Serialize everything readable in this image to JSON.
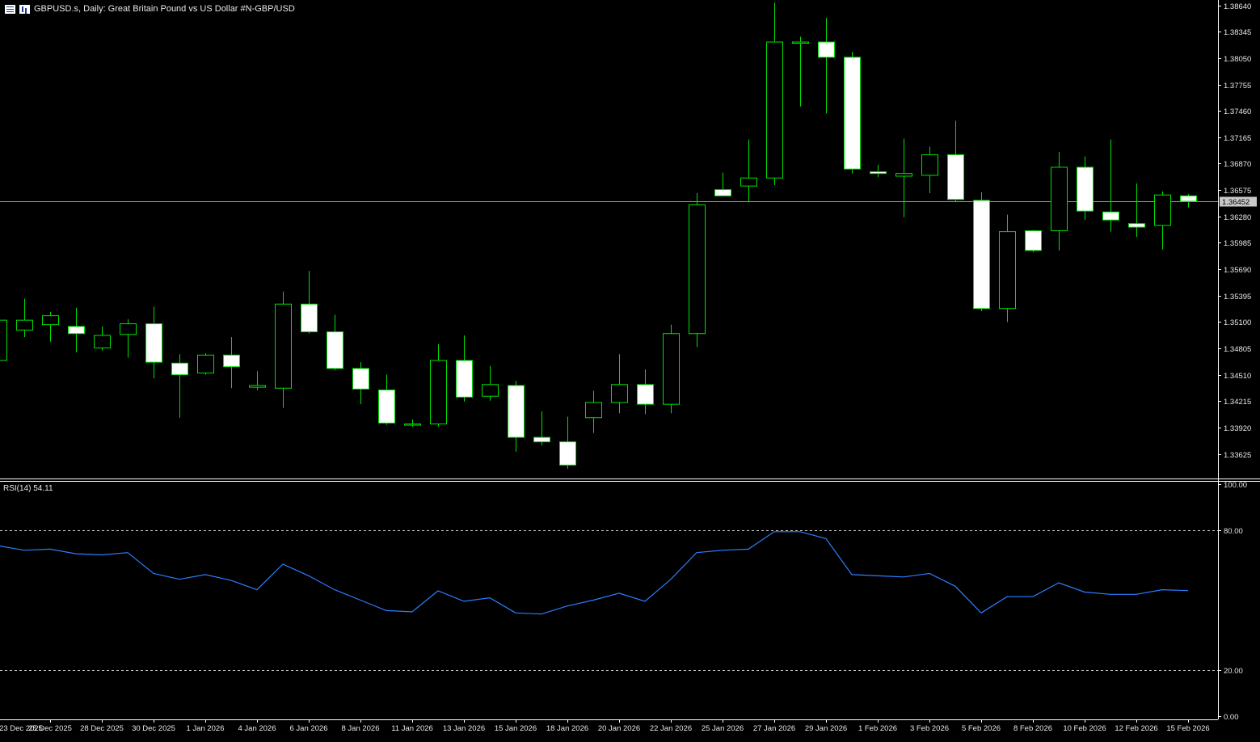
{
  "header": {
    "title": "GBPUSD.s, Daily:  Great Britain Pound vs US Dollar #N-GBP/USD",
    "menu_icon": "menu-icon",
    "chart_icon": "chart-icon"
  },
  "rsi": {
    "label": "RSI(14) 54.11"
  },
  "colors": {
    "background": "#000000",
    "candle": "#00e000",
    "candle_body": "#ffffff",
    "rsi_line": "#2a7fff",
    "axis": "#ffffff",
    "price_line": "#8aa0a0"
  },
  "chart_data": [
    {
      "type": "candlestick",
      "title": "GBPUSD.s, Daily:  Great Britain Pound vs US Dollar #N-GBP/USD",
      "price_label": "1.36452",
      "current_price": 1.36452,
      "ylim": [
        1.3335,
        1.387
      ],
      "yticks": [
        "1.38640",
        "1.38345",
        "1.38050",
        "1.37755",
        "1.37460",
        "1.37165",
        "1.36870",
        "1.36575",
        "1.36280",
        "1.35985",
        "1.35690",
        "1.35395",
        "1.35100",
        "1.34805",
        "1.34510",
        "1.34215",
        "1.33920",
        "1.33625"
      ],
      "x_labels": [
        "23 Dec 2025",
        "25 Dec 2025",
        "28 Dec 2025",
        "30 Dec 2025",
        "1 Jan 2026",
        "4 Jan 2026",
        "6 Jan 2026",
        "8 Jan 2026",
        "11 Jan 2026",
        "13 Jan 2026",
        "15 Jan 2026",
        "18 Jan 2026",
        "20 Jan 2026",
        "22 Jan 2026",
        "25 Jan 2026",
        "27 Jan 2026",
        "29 Jan 2026",
        "1 Feb 2026",
        "3 Feb 2026",
        "5 Feb 2026",
        "8 Feb 2026",
        "10 Feb 2026",
        "12 Feb 2026",
        "15 Feb 2026"
      ],
      "candles": [
        {
          "o": 1.3467,
          "h": 1.3515,
          "l": 1.3467,
          "c": 1.3512
        },
        {
          "o": 1.3501,
          "h": 1.3536,
          "l": 1.3493,
          "c": 1.3512
        },
        {
          "o": 1.3507,
          "h": 1.3521,
          "l": 1.3488,
          "c": 1.3517
        },
        {
          "o": 1.3505,
          "h": 1.3526,
          "l": 1.3476,
          "c": 1.3497
        },
        {
          "o": 1.3481,
          "h": 1.3505,
          "l": 1.3478,
          "c": 1.3495
        },
        {
          "o": 1.3496,
          "h": 1.3513,
          "l": 1.347,
          "c": 1.3508
        },
        {
          "o": 1.3508,
          "h": 1.3527,
          "l": 1.3447,
          "c": 1.3465
        },
        {
          "o": 1.3464,
          "h": 1.3474,
          "l": 1.3403,
          "c": 1.3451
        },
        {
          "o": 1.3453,
          "h": 1.3475,
          "l": 1.3451,
          "c": 1.3473
        },
        {
          "o": 1.3473,
          "h": 1.3493,
          "l": 1.3436,
          "c": 1.346
        },
        {
          "o": 1.3437,
          "h": 1.3455,
          "l": 1.3434,
          "c": 1.3439
        },
        {
          "o": 1.3436,
          "h": 1.3544,
          "l": 1.3414,
          "c": 1.353
        },
        {
          "o": 1.353,
          "h": 1.3567,
          "l": 1.3497,
          "c": 1.3499
        },
        {
          "o": 1.3499,
          "h": 1.3518,
          "l": 1.3456,
          "c": 1.3458
        },
        {
          "o": 1.3458,
          "h": 1.3465,
          "l": 1.3418,
          "c": 1.3435
        },
        {
          "o": 1.3434,
          "h": 1.3451,
          "l": 1.3395,
          "c": 1.3397
        },
        {
          "o": 1.3396,
          "h": 1.3401,
          "l": 1.3393,
          "c": 1.3396
        },
        {
          "o": 1.3396,
          "h": 1.3485,
          "l": 1.3393,
          "c": 1.3467
        },
        {
          "o": 1.3467,
          "h": 1.3495,
          "l": 1.3421,
          "c": 1.3426
        },
        {
          "o": 1.3427,
          "h": 1.3461,
          "l": 1.3422,
          "c": 1.344
        },
        {
          "o": 1.3439,
          "h": 1.3444,
          "l": 1.3365,
          "c": 1.3381
        },
        {
          "o": 1.3381,
          "h": 1.341,
          "l": 1.3372,
          "c": 1.3376
        },
        {
          "o": 1.3376,
          "h": 1.3404,
          "l": 1.3346,
          "c": 1.335
        },
        {
          "o": 1.3403,
          "h": 1.3433,
          "l": 1.3386,
          "c": 1.342
        },
        {
          "o": 1.342,
          "h": 1.3474,
          "l": 1.3408,
          "c": 1.344
        },
        {
          "o": 1.344,
          "h": 1.3457,
          "l": 1.3407,
          "c": 1.3418
        },
        {
          "o": 1.3418,
          "h": 1.3507,
          "l": 1.3408,
          "c": 1.3497
        },
        {
          "o": 1.3497,
          "h": 1.3654,
          "l": 1.3482,
          "c": 1.3641
        },
        {
          "o": 1.3658,
          "h": 1.3677,
          "l": 1.3653,
          "c": 1.3651
        },
        {
          "o": 1.3662,
          "h": 1.3714,
          "l": 1.3644,
          "c": 1.3671
        },
        {
          "o": 1.3671,
          "h": 1.3867,
          "l": 1.3663,
          "c": 1.3823
        },
        {
          "o": 1.3823,
          "h": 1.3829,
          "l": 1.3751,
          "c": 1.3823
        },
        {
          "o": 1.3823,
          "h": 1.385,
          "l": 1.3743,
          "c": 1.3806
        },
        {
          "o": 1.3806,
          "h": 1.3812,
          "l": 1.3676,
          "c": 1.3681
        },
        {
          "o": 1.3678,
          "h": 1.3686,
          "l": 1.3672,
          "c": 1.3676
        },
        {
          "o": 1.3673,
          "h": 1.3715,
          "l": 1.3627,
          "c": 1.3676
        },
        {
          "o": 1.3674,
          "h": 1.3706,
          "l": 1.3654,
          "c": 1.3697
        },
        {
          "o": 1.3697,
          "h": 1.3735,
          "l": 1.3644,
          "c": 1.3647
        },
        {
          "o": 1.3646,
          "h": 1.3655,
          "l": 1.3522,
          "c": 1.3525
        },
        {
          "o": 1.3525,
          "h": 1.363,
          "l": 1.351,
          "c": 1.3611
        },
        {
          "o": 1.3612,
          "h": 1.3613,
          "l": 1.3588,
          "c": 1.359
        },
        {
          "o": 1.3612,
          "h": 1.37,
          "l": 1.359,
          "c": 1.3683
        },
        {
          "o": 1.3683,
          "h": 1.3695,
          "l": 1.3624,
          "c": 1.3634
        },
        {
          "o": 1.3633,
          "h": 1.3714,
          "l": 1.3611,
          "c": 1.3624
        },
        {
          "o": 1.362,
          "h": 1.3665,
          "l": 1.3605,
          "c": 1.3616
        },
        {
          "o": 1.3618,
          "h": 1.3656,
          "l": 1.3591,
          "c": 1.3652
        },
        {
          "o": 1.3651,
          "h": 1.3653,
          "l": 1.3638,
          "c": 1.3645
        }
      ]
    },
    {
      "type": "line",
      "title": "RSI(14) 54.11",
      "ylim": [
        0,
        100
      ],
      "yticks": [
        "100.00",
        "80.00",
        "20.00",
        "0.00"
      ],
      "levels": [
        80,
        20
      ],
      "values": [
        73.5,
        71.5,
        72.0,
        70.0,
        69.5,
        70.5,
        61.5,
        59.0,
        61.0,
        58.5,
        54.5,
        65.5,
        60.5,
        54.5,
        50.0,
        45.5,
        45.0,
        54.0,
        49.5,
        51.0,
        44.5,
        44.0,
        47.5,
        50.0,
        53.0,
        49.5,
        59.0,
        70.5,
        71.5,
        72.0,
        79.5,
        79.5,
        76.5,
        61.0,
        60.5,
        60.0,
        61.5,
        56.0,
        44.5,
        51.5,
        51.5,
        57.5,
        53.5,
        52.5,
        52.5,
        54.5,
        54.11
      ]
    }
  ]
}
